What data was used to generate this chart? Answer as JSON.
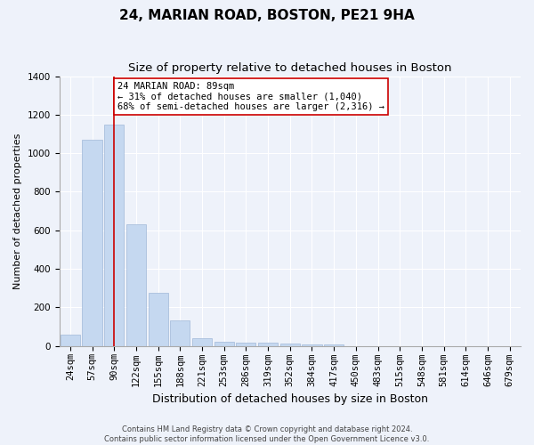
{
  "title_line1": "24, MARIAN ROAD, BOSTON, PE21 9HA",
  "title_line2": "Size of property relative to detached houses in Boston",
  "xlabel": "Distribution of detached houses by size in Boston",
  "ylabel": "Number of detached properties",
  "categories": [
    "24sqm",
    "57sqm",
    "90sqm",
    "122sqm",
    "155sqm",
    "188sqm",
    "221sqm",
    "253sqm",
    "286sqm",
    "319sqm",
    "352sqm",
    "384sqm",
    "417sqm",
    "450sqm",
    "483sqm",
    "515sqm",
    "548sqm",
    "581sqm",
    "614sqm",
    "646sqm",
    "679sqm"
  ],
  "values": [
    60,
    1070,
    1150,
    630,
    275,
    130,
    40,
    20,
    15,
    15,
    10,
    5,
    5,
    0,
    0,
    0,
    0,
    0,
    0,
    0,
    0
  ],
  "bar_color": "#c5d8f0",
  "bar_edge_color": "#a0b8d8",
  "red_line_x": 2.0,
  "red_line_color": "#cc0000",
  "annotation_text": "24 MARIAN ROAD: 89sqm\n← 31% of detached houses are smaller (1,040)\n68% of semi-detached houses are larger (2,316) →",
  "annotation_box_facecolor": "#ffffff",
  "annotation_box_edgecolor": "#cc0000",
  "ylim": [
    0,
    1400
  ],
  "yticks": [
    0,
    200,
    400,
    600,
    800,
    1000,
    1200,
    1400
  ],
  "background_color": "#eef2fa",
  "grid_color": "#ffffff",
  "footer_text": "Contains HM Land Registry data © Crown copyright and database right 2024.\nContains public sector information licensed under the Open Government Licence v3.0.",
  "title_fontsize": 11,
  "subtitle_fontsize": 9.5,
  "xlabel_fontsize": 9,
  "ylabel_fontsize": 8,
  "tick_fontsize": 7.5,
  "annotation_fontsize": 7.5,
  "footer_fontsize": 6
}
